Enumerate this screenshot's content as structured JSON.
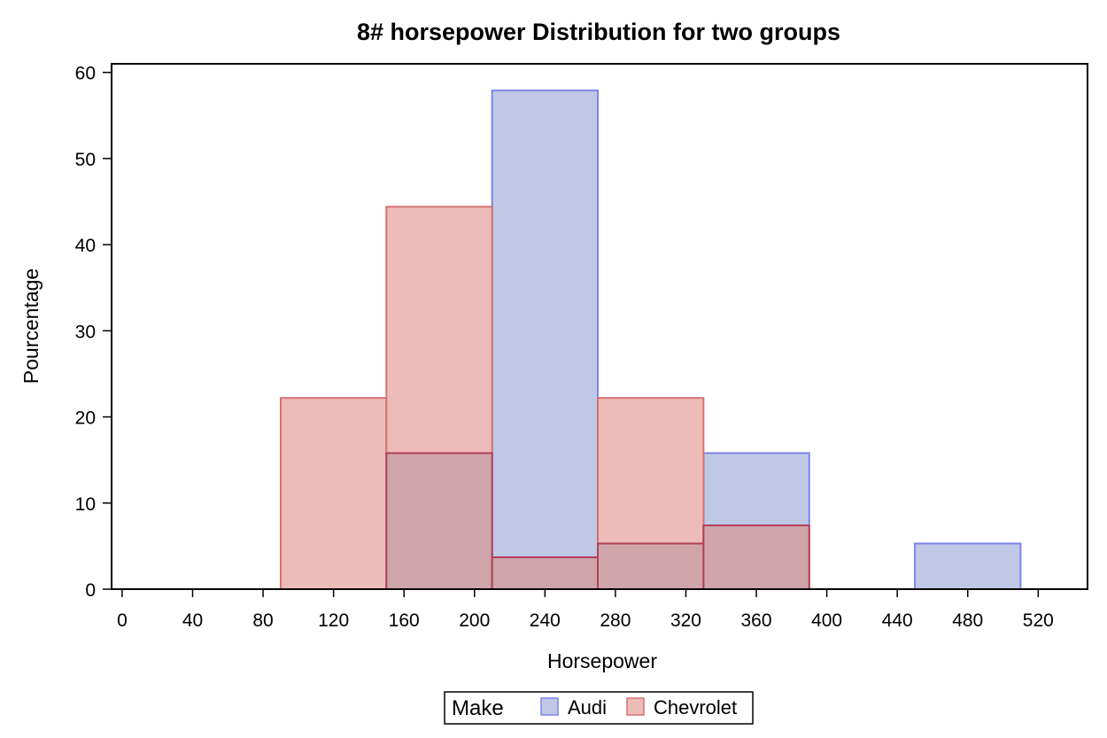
{
  "chart_data": {
    "type": "bar",
    "title": "8# horsepower Distribution for two groups",
    "xlabel": "Horsepower",
    "ylabel": "Pourcentage",
    "xlim": [
      -6,
      548
    ],
    "ylim": [
      0,
      61
    ],
    "xticks": [
      "0",
      "40",
      "80",
      "120",
      "160",
      "200",
      "240",
      "280",
      "320",
      "360",
      "400",
      "440",
      "480",
      "520"
    ],
    "yticks": [
      "0",
      "10",
      "20",
      "30",
      "40",
      "50",
      "60"
    ],
    "bin_width": 60,
    "grid": false,
    "legend": {
      "title": "Make",
      "position": "bottom-center"
    },
    "series": [
      {
        "name": "Audi",
        "fill": "#bfc9e6",
        "stroke": "#7c85e8",
        "bins": [
          {
            "x0": 150,
            "x1": 210,
            "value": 15.8
          },
          {
            "x0": 210,
            "x1": 270,
            "value": 57.9
          },
          {
            "x0": 270,
            "x1": 330,
            "value": 5.3
          },
          {
            "x0": 330,
            "x1": 390,
            "value": 15.8
          },
          {
            "x0": 450,
            "x1": 510,
            "value": 5.3
          }
        ]
      },
      {
        "name": "Chevrolet",
        "fill": "#edbcb8",
        "stroke": "#d67272",
        "bins": [
          {
            "x0": 90,
            "x1": 150,
            "value": 22.2
          },
          {
            "x0": 150,
            "x1": 210,
            "value": 44.4
          },
          {
            "x0": 210,
            "x1": 270,
            "value": 3.7
          },
          {
            "x0": 270,
            "x1": 330,
            "value": 22.2
          },
          {
            "x0": 330,
            "x1": 390,
            "value": 7.4
          }
        ]
      }
    ],
    "overlap_fill": "#cfa5ab",
    "overlap_stroke": "#b0405a"
  }
}
